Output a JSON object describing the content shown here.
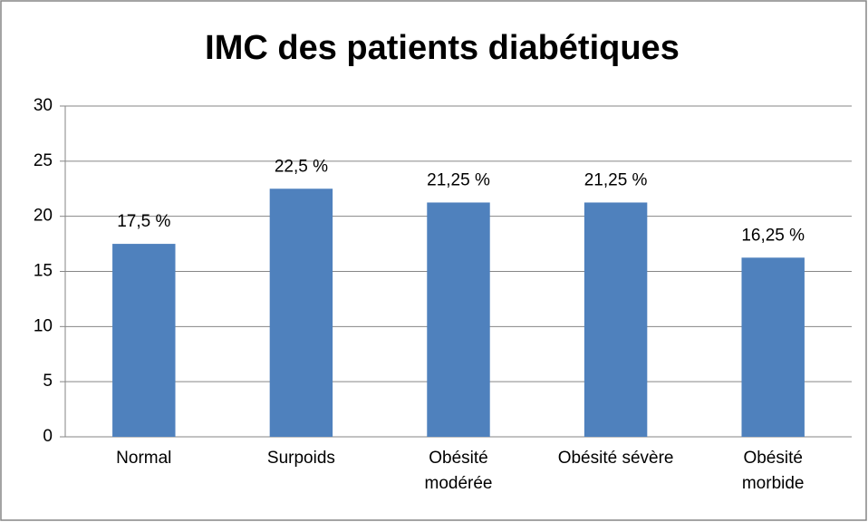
{
  "chart_data": {
    "type": "bar",
    "title": "IMC des patients diabétiques",
    "categories": [
      "Normal",
      "Surpoids",
      "Obésité\nmodérée",
      "Obésité sévère",
      "Obésité\nmorbide"
    ],
    "values": [
      17.5,
      22.5,
      21.25,
      21.25,
      16.25
    ],
    "value_labels": [
      "17,5 %",
      "22,5 %",
      "21,25 %",
      "21,25 %",
      "16,25 %"
    ],
    "color": "#4f81bd",
    "ylim": [
      0,
      30
    ],
    "yticks": [
      0,
      5,
      10,
      15,
      20,
      25,
      30
    ],
    "grid": true
  }
}
